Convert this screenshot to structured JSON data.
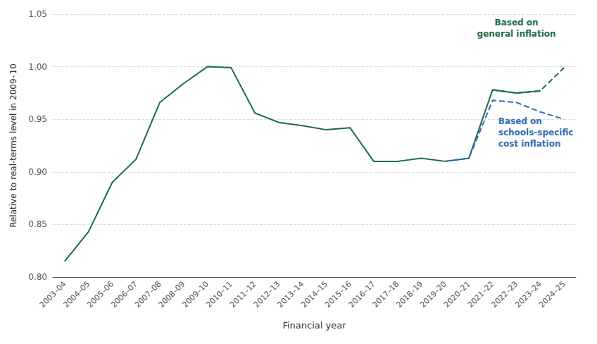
{
  "chart_data": {
    "type": "line",
    "categories": [
      "2003–04",
      "2004–05",
      "2005–06",
      "2006–07",
      "2007–08",
      "2008–09",
      "2009–10",
      "2010–11",
      "2011–12",
      "2012–13",
      "2013–14",
      "2014–15",
      "2015–16",
      "2016–17",
      "2017–18",
      "2018–19",
      "2019–20",
      "2020–21",
      "2021–22",
      "2022–23",
      "2023–24",
      "2024–25"
    ],
    "series": [
      {
        "color": "#1a6b4a",
        "line_style": "solid",
        "values": [
          0.815,
          0.843,
          0.89,
          0.912,
          0.966,
          0.984,
          1.0,
          0.999,
          0.956,
          0.947,
          0.944,
          0.94,
          0.942,
          0.91,
          0.91,
          0.913,
          0.91,
          0.913,
          0.978,
          0.975,
          0.977,
          null
        ]
      },
      {
        "color": "#1a6b4a",
        "line_style": "dashed",
        "values": [
          null,
          null,
          null,
          null,
          null,
          null,
          null,
          null,
          null,
          null,
          null,
          null,
          null,
          null,
          null,
          null,
          null,
          null,
          0.978,
          0.975,
          0.977,
          0.999
        ]
      },
      {
        "color": "#2e6db4",
        "line_style": "dashed",
        "values": [
          null,
          null,
          null,
          null,
          null,
          null,
          null,
          null,
          null,
          null,
          null,
          null,
          null,
          null,
          null,
          null,
          0.91,
          0.913,
          0.968,
          0.966,
          0.957,
          0.95
        ]
      }
    ],
    "xlabel": "Financial year",
    "ylabel": "Relative to real-terms level in 2009–10",
    "ylim": [
      0.8,
      1.05
    ],
    "yticks": [
      {
        "value": 0.8,
        "label": "0.80"
      },
      0.85,
      {
        "value": 0.9,
        "label": "0.90"
      },
      0.95,
      {
        "value": 1.0,
        "label": "1.00"
      },
      1.05
    ],
    "grid": true,
    "annotations": [
      {
        "text": "Based on\ngeneral inflation",
        "color": "#1a6b4a"
      },
      {
        "text": "Based on\nschools-specific\ncost inflation",
        "color": "#2e6db4"
      }
    ]
  }
}
